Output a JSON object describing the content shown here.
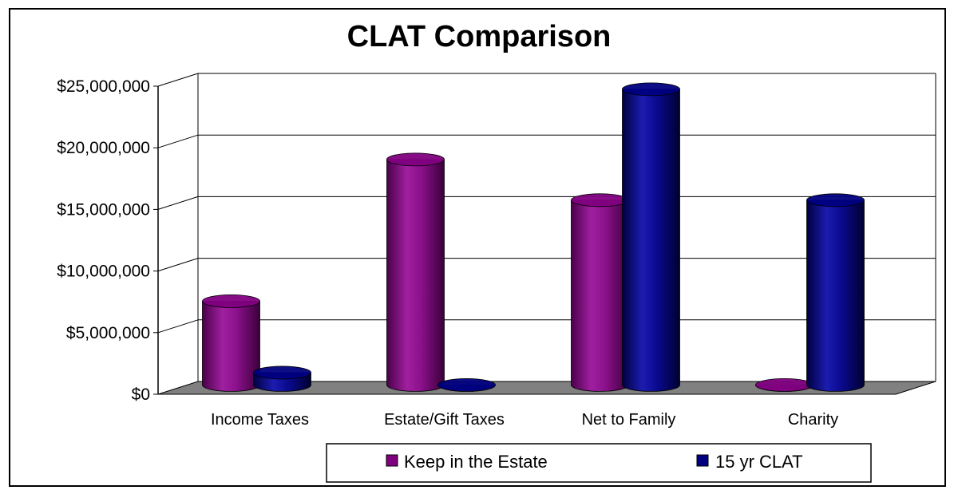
{
  "chart_data": {
    "type": "bar",
    "title": "CLAT Comparison",
    "categories": [
      "Income Taxes",
      "Estate/Gift Taxes",
      "Net to Family",
      "Charity"
    ],
    "series": [
      {
        "name": "Keep in the Estate",
        "values": [
          6800000,
          18300000,
          15000000,
          0
        ],
        "color": "#800080"
      },
      {
        "name": "15 yr CLAT",
        "values": [
          1000000,
          0,
          24000000,
          15000000
        ],
        "color": "#000080"
      }
    ],
    "y_ticks": [
      "$0",
      "$5,000,000",
      "$10,000,000",
      "$15,000,000",
      "$20,000,000",
      "$25,000,000"
    ],
    "ylim": [
      0,
      25000000
    ],
    "grid": true,
    "legend_position": "bottom",
    "style": "3d-cylinder"
  }
}
